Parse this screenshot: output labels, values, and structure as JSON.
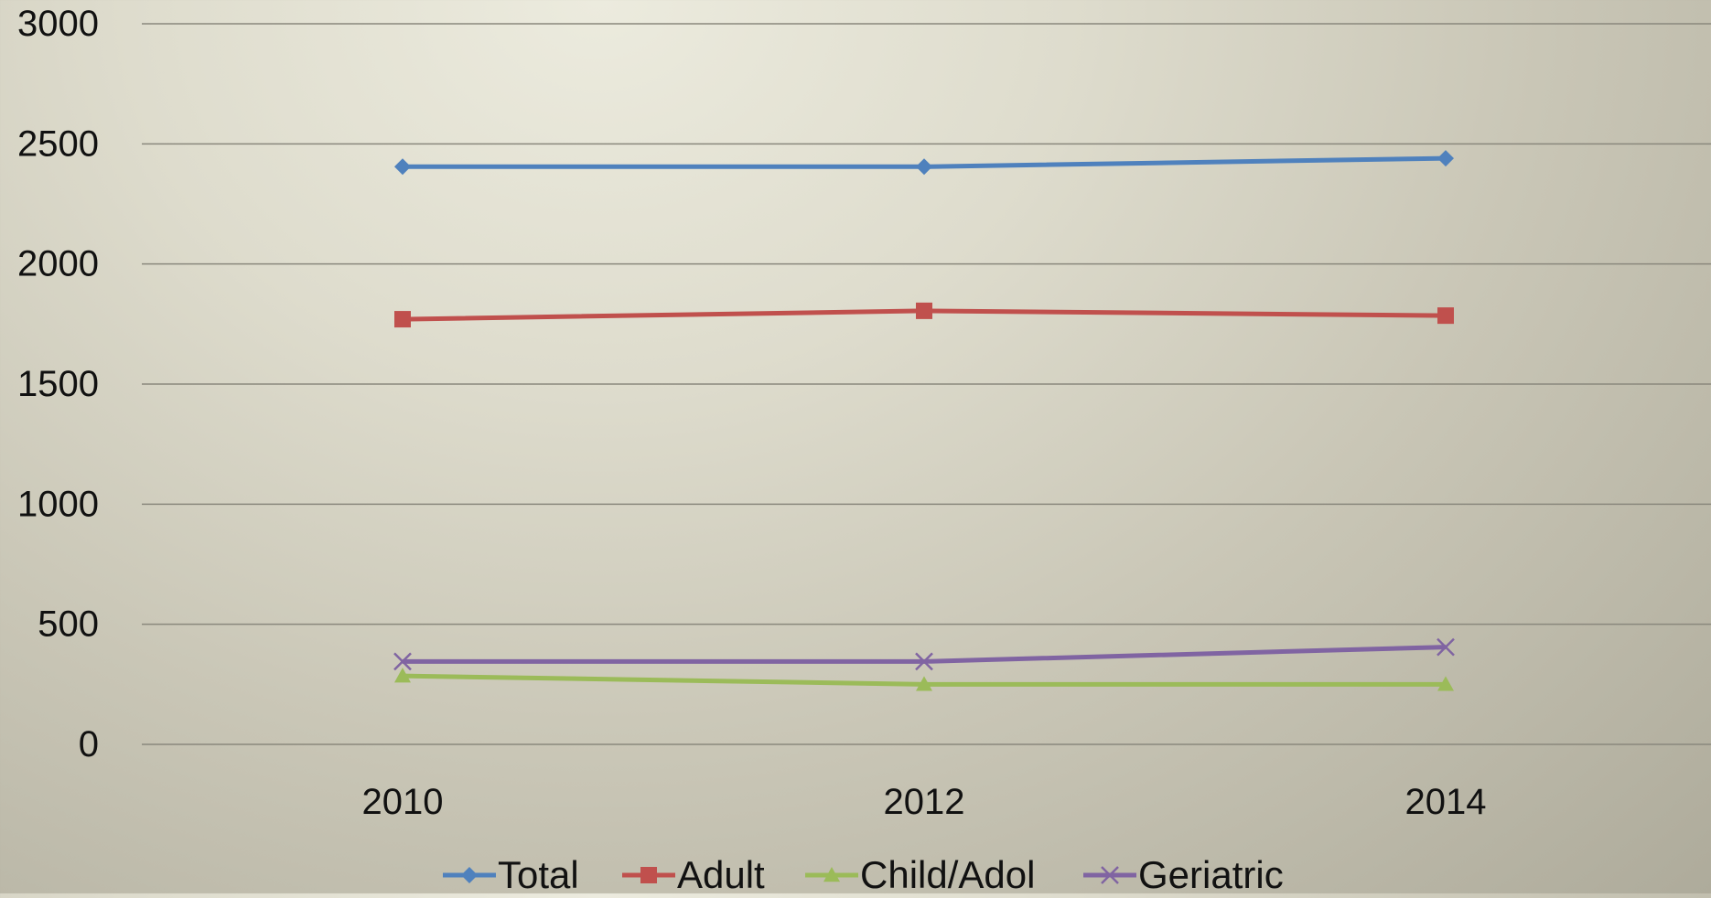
{
  "chart_data": {
    "type": "line",
    "categories": [
      "2010",
      "2012",
      "2014"
    ],
    "series": [
      {
        "name": "Total",
        "values": [
          2405,
          2405,
          2440
        ],
        "color": "#4f81bd",
        "marker": "diamond"
      },
      {
        "name": "Adult",
        "values": [
          1770,
          1805,
          1785
        ],
        "color": "#c0504d",
        "marker": "square"
      },
      {
        "name": "Child/Adol",
        "values": [
          285,
          250,
          250
        ],
        "color": "#9bbb59",
        "marker": "triangle"
      },
      {
        "name": "Geriatric",
        "values": [
          345,
          345,
          405
        ],
        "color": "#8064a2",
        "marker": "x"
      }
    ],
    "ylim": [
      0,
      3000
    ],
    "yticks": [
      "0",
      "500",
      "1000",
      "1500",
      "2000",
      "2500",
      "3000"
    ],
    "grid": true,
    "legend": "bottom",
    "title": "",
    "xlabel": "",
    "ylabel": ""
  }
}
